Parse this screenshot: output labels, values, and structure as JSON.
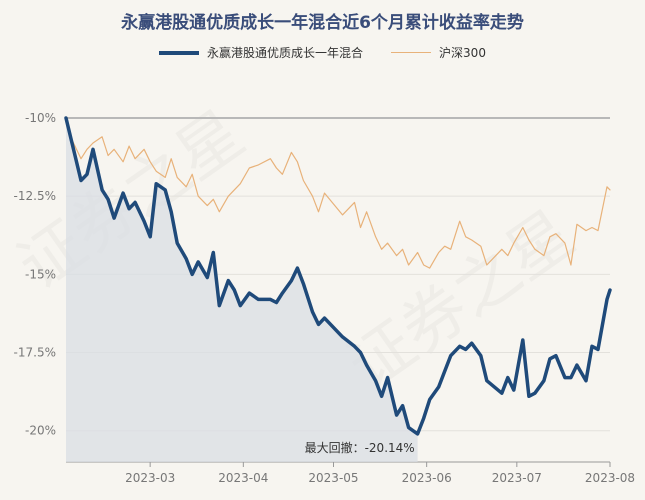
{
  "chart_data": {
    "type": "line",
    "title": "永赢港股通优质成长一年混合近6个月累计收益率走势",
    "legend": [
      "永赢港股通优质成长一年混合",
      "沪深300"
    ],
    "legend_position": "top",
    "x_ticks": [
      "2023-03",
      "2023-04",
      "2023-05",
      "2023-06",
      "2023-07",
      "2023-08"
    ],
    "y_ticks": [
      "-10%",
      "-12.5%",
      "-15%",
      "-17.5%",
      "-20%"
    ],
    "ylim": [
      -21,
      -10
    ],
    "x_start": "2023-02-01",
    "x_end": "2023-08-01",
    "grid": true,
    "annotation": "最大回撤：-20.14%",
    "watermark": "证券之星",
    "colors": {
      "fund": "#1f4a7a",
      "index": "#e8b27a",
      "drawdown_fill": "#d9dee4"
    },
    "series": [
      {
        "name": "永赢港股通优质成长一年混合",
        "dates": [
          "2023-02-01",
          "2023-02-03",
          "2023-02-06",
          "2023-02-08",
          "2023-02-10",
          "2023-02-13",
          "2023-02-15",
          "2023-02-17",
          "2023-02-20",
          "2023-02-22",
          "2023-02-24",
          "2023-02-27",
          "2023-03-01",
          "2023-03-03",
          "2023-03-06",
          "2023-03-08",
          "2023-03-10",
          "2023-03-13",
          "2023-03-15",
          "2023-03-17",
          "2023-03-20",
          "2023-03-22",
          "2023-03-24",
          "2023-03-27",
          "2023-03-29",
          "2023-03-31",
          "2023-04-03",
          "2023-04-06",
          "2023-04-10",
          "2023-04-12",
          "2023-04-14",
          "2023-04-17",
          "2023-04-19",
          "2023-04-21",
          "2023-04-24",
          "2023-04-26",
          "2023-04-28",
          "2023-05-04",
          "2023-05-08",
          "2023-05-10",
          "2023-05-12",
          "2023-05-15",
          "2023-05-17",
          "2023-05-19",
          "2023-05-22",
          "2023-05-24",
          "2023-05-26",
          "2023-05-29",
          "2023-05-31",
          "2023-06-02",
          "2023-06-05",
          "2023-06-07",
          "2023-06-09",
          "2023-06-12",
          "2023-06-14",
          "2023-06-16",
          "2023-06-19",
          "2023-06-21",
          "2023-06-26",
          "2023-06-28",
          "2023-06-30",
          "2023-07-03",
          "2023-07-05",
          "2023-07-07",
          "2023-07-10",
          "2023-07-12",
          "2023-07-14",
          "2023-07-17",
          "2023-07-19",
          "2023-07-21",
          "2023-07-24",
          "2023-07-26",
          "2023-07-28",
          "2023-07-31",
          "2023-08-01"
        ],
        "values": [
          -10.0,
          -10.8,
          -12.0,
          -11.8,
          -11.0,
          -12.3,
          -12.6,
          -13.2,
          -12.4,
          -12.9,
          -12.7,
          -13.3,
          -13.8,
          -12.1,
          -12.3,
          -13.0,
          -14.0,
          -14.5,
          -15.0,
          -14.6,
          -15.1,
          -14.3,
          -16.0,
          -15.2,
          -15.5,
          -16.0,
          -15.6,
          -15.8,
          -15.8,
          -15.9,
          -15.6,
          -15.2,
          -14.8,
          -15.3,
          -16.2,
          -16.6,
          -16.4,
          -17.0,
          -17.3,
          -17.5,
          -17.9,
          -18.4,
          -18.9,
          -18.3,
          -19.5,
          -19.2,
          -19.9,
          -20.1,
          -19.6,
          -19.0,
          -18.6,
          -18.1,
          -17.6,
          -17.3,
          -17.4,
          -17.2,
          -17.6,
          -18.4,
          -18.8,
          -18.3,
          -18.7,
          -17.1,
          -18.9,
          -18.8,
          -18.4,
          -17.7,
          -17.6,
          -18.3,
          -18.3,
          -17.9,
          -18.4,
          -17.3,
          -17.4,
          -15.8,
          -15.5
        ]
      },
      {
        "name": "沪深300",
        "dates": [
          "2023-02-01",
          "2023-02-03",
          "2023-02-06",
          "2023-02-08",
          "2023-02-10",
          "2023-02-13",
          "2023-02-15",
          "2023-02-17",
          "2023-02-20",
          "2023-02-22",
          "2023-02-24",
          "2023-02-27",
          "2023-03-01",
          "2023-03-03",
          "2023-03-06",
          "2023-03-08",
          "2023-03-10",
          "2023-03-13",
          "2023-03-15",
          "2023-03-17",
          "2023-03-20",
          "2023-03-22",
          "2023-03-24",
          "2023-03-27",
          "2023-03-29",
          "2023-03-31",
          "2023-04-03",
          "2023-04-06",
          "2023-04-10",
          "2023-04-12",
          "2023-04-14",
          "2023-04-17",
          "2023-04-19",
          "2023-04-21",
          "2023-04-24",
          "2023-04-26",
          "2023-04-28",
          "2023-05-04",
          "2023-05-08",
          "2023-05-10",
          "2023-05-12",
          "2023-05-15",
          "2023-05-17",
          "2023-05-19",
          "2023-05-22",
          "2023-05-24",
          "2023-05-26",
          "2023-05-29",
          "2023-05-31",
          "2023-06-02",
          "2023-06-05",
          "2023-06-07",
          "2023-06-09",
          "2023-06-12",
          "2023-06-14",
          "2023-06-16",
          "2023-06-19",
          "2023-06-21",
          "2023-06-26",
          "2023-06-28",
          "2023-06-30",
          "2023-07-03",
          "2023-07-05",
          "2023-07-07",
          "2023-07-10",
          "2023-07-12",
          "2023-07-14",
          "2023-07-17",
          "2023-07-19",
          "2023-07-21",
          "2023-07-24",
          "2023-07-26",
          "2023-07-28",
          "2023-07-31",
          "2023-08-01"
        ],
        "values": [
          -10.0,
          -10.7,
          -11.3,
          -11.0,
          -10.8,
          -10.6,
          -11.2,
          -11.0,
          -11.4,
          -10.9,
          -11.3,
          -11.0,
          -11.4,
          -11.7,
          -11.9,
          -11.3,
          -11.9,
          -12.2,
          -11.8,
          -12.5,
          -12.8,
          -12.6,
          -13.0,
          -12.5,
          -12.3,
          -12.1,
          -11.6,
          -11.5,
          -11.3,
          -11.6,
          -11.8,
          -11.1,
          -11.4,
          -12.0,
          -12.5,
          -13.0,
          -12.4,
          -13.1,
          -12.7,
          -13.5,
          -13.0,
          -13.8,
          -14.2,
          -14.0,
          -14.4,
          -14.2,
          -14.7,
          -14.3,
          -14.7,
          -14.8,
          -14.3,
          -14.1,
          -14.2,
          -13.3,
          -13.8,
          -13.9,
          -14.1,
          -14.7,
          -14.2,
          -14.4,
          -14.0,
          -13.5,
          -13.9,
          -14.2,
          -14.4,
          -13.8,
          -13.7,
          -14.0,
          -14.7,
          -13.4,
          -13.6,
          -13.5,
          -13.6,
          -12.2,
          -12.3
        ]
      }
    ]
  }
}
